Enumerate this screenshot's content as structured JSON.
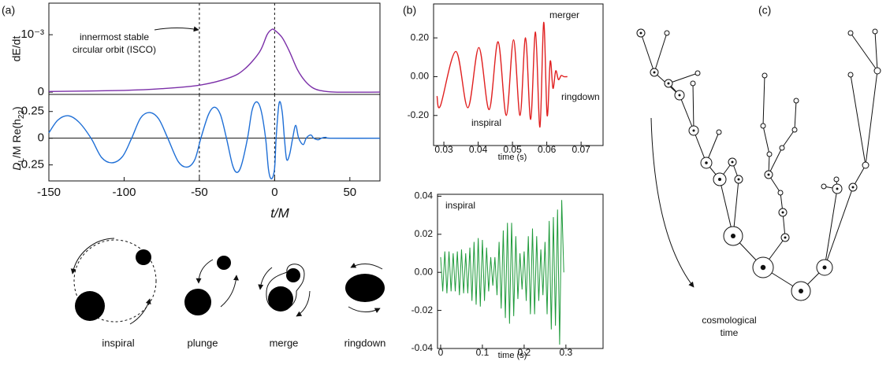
{
  "panel_labels": [
    "(a)",
    "(b)",
    "(c)"
  ],
  "stages": [
    "inspiral",
    "plunge",
    "merge",
    "ringdown"
  ],
  "tree_label": [
    "cosmological",
    "time"
  ],
  "chart_data": [
    {
      "type": "line",
      "ylabel": "dE/dt",
      "xlim": [
        -150,
        70
      ],
      "ylim": [
        -4e-05,
        0.00155
      ],
      "yticks": [
        0,
        {
          "value": 0.001,
          "label": "10⁻³"
        }
      ],
      "vlines": [
        -50,
        0
      ],
      "annotation": [
        "innermost stable",
        "circular orbit (ISCO)"
      ],
      "x": [
        -150,
        -100,
        -75,
        -50,
        -30,
        -20,
        -10,
        -5,
        -2,
        0,
        5,
        10,
        15,
        20,
        25,
        30,
        40,
        70
      ],
      "series": [
        {
          "color": "#7b2fa8",
          "values": [
            1e-05,
            3e-05,
            6e-05,
            0.00012,
            0.00025,
            0.0004,
            0.0007,
            0.001,
            0.00109,
            0.00108,
            0.00095,
            0.0007,
            0.0004,
            0.0002,
            8e-05,
            3e-05,
            0,
            0
          ]
        }
      ]
    },
    {
      "type": "line",
      "ylabel": [
        "D",
        "L",
        "/M Re(h",
        "22",
        ")"
      ],
      "xlabel": "t/M",
      "xlim": [
        -150,
        70
      ],
      "ylim": [
        -0.4,
        0.41
      ],
      "xticks": [
        -150,
        -100,
        -50,
        0,
        50
      ],
      "yticks": [
        -0.25,
        0,
        0.25
      ],
      "vlines": [
        -50,
        0
      ],
      "hlines": [
        0
      ],
      "x": [
        -150,
        -144,
        -137,
        -130,
        -122,
        -115,
        -108,
        -101,
        -95,
        -89,
        -83,
        -77,
        -71,
        -64,
        -58,
        -53,
        -49,
        -44,
        -40,
        -36,
        -32,
        -28,
        -25,
        -22,
        -18,
        -15,
        -12,
        -9,
        -6,
        -4,
        -2,
        0,
        1,
        3,
        5,
        6.5,
        8,
        10,
        12,
        14,
        16,
        19,
        21,
        24,
        26,
        29,
        31,
        34,
        38,
        70
      ],
      "series": [
        {
          "color": "#1f6fd6",
          "values": [
            0.05,
            0.17,
            0.21,
            0.15,
            0,
            -0.18,
            -0.23,
            -0.17,
            0,
            0.19,
            0.24,
            0.18,
            0,
            -0.22,
            -0.27,
            -0.2,
            0,
            0.22,
            0.29,
            0.22,
            0,
            -0.25,
            -0.32,
            -0.25,
            0,
            0.26,
            0.34,
            0.26,
            0,
            -0.3,
            -0.38,
            -0.28,
            0,
            0.33,
            0.25,
            0,
            -0.2,
            -0.15,
            0,
            0.12,
            0,
            -0.06,
            0,
            0.03,
            0,
            -0.015,
            0,
            0.008,
            0,
            0
          ]
        }
      ]
    },
    {
      "type": "line",
      "xlabel": "time (s)",
      "xlim": [
        0.027,
        0.0764
      ],
      "ylim": [
        -0.355,
        0.375
      ],
      "xticks": [
        0.03,
        0.04,
        0.05,
        0.06,
        0.07
      ],
      "yticks": [
        {
          "value": -0.2,
          "label": "-0.20"
        },
        {
          "value": 0,
          "label": "0.00"
        },
        {
          "value": 0.2,
          "label": "0.20"
        }
      ],
      "annotations": [
        "merger",
        "ringdown",
        "inspiral"
      ],
      "x": [
        0.028,
        0.029,
        0.0335,
        0.037,
        0.0402,
        0.0432,
        0.0458,
        0.0482,
        0.0503,
        0.0522,
        0.0538,
        0.0553,
        0.0567,
        0.058,
        0.0591,
        0.0601,
        0.061,
        0.0618,
        0.0626,
        0.0634,
        0.0642,
        0.065,
        0.066
      ],
      "series": [
        {
          "color": "#e02020",
          "values": [
            -0.1,
            -0.15,
            0.13,
            -0.16,
            0.15,
            -0.17,
            0.18,
            -0.2,
            0.19,
            -0.2,
            0.2,
            -0.22,
            0.23,
            -0.26,
            0.28,
            -0.2,
            0.08,
            -0.06,
            0.03,
            -0.015,
            0.006,
            0,
            0
          ]
        }
      ]
    },
    {
      "type": "line",
      "xlabel": "time (s)",
      "xlim": [
        -0.0075,
        0.389
      ],
      "ylim": [
        -0.04,
        0.041
      ],
      "xticks": [
        0,
        0.1,
        0.2,
        0.3
      ],
      "yticks": [
        {
          "value": -0.04,
          "label": "-0.04"
        },
        {
          "value": -0.02,
          "label": "-0.02"
        },
        {
          "value": 0,
          "label": "0.00"
        },
        {
          "value": 0.02,
          "label": "0.02"
        },
        {
          "value": 0.04,
          "label": "0.04"
        }
      ],
      "annotations": [
        "inspiral"
      ],
      "x": [
        0,
        0.005,
        0.01,
        0.015,
        0.02,
        0.025,
        0.03,
        0.035,
        0.04,
        0.045,
        0.05,
        0.055,
        0.06,
        0.065,
        0.07,
        0.075,
        0.08,
        0.085,
        0.09,
        0.095,
        0.1,
        0.105,
        0.11,
        0.115,
        0.12,
        0.125,
        0.13,
        0.135,
        0.14,
        0.145,
        0.15,
        0.155,
        0.16,
        0.165,
        0.17,
        0.175,
        0.18,
        0.185,
        0.19,
        0.195,
        0.2,
        0.205,
        0.21,
        0.215,
        0.22,
        0.225,
        0.23,
        0.235,
        0.24,
        0.245,
        0.25,
        0.255,
        0.26,
        0.265,
        0.27,
        0.275,
        0.28,
        0.285,
        0.29,
        0.295
      ],
      "series": [
        {
          "color": "#1e9a3a",
          "values": [
            0.008,
            -0.01,
            0.011,
            -0.011,
            0.011,
            -0.01,
            0.01,
            -0.01,
            0.011,
            -0.012,
            0.012,
            -0.011,
            0.01,
            -0.011,
            0.013,
            -0.015,
            0.016,
            -0.017,
            0.018,
            -0.018,
            0.017,
            -0.015,
            0.013,
            -0.01,
            0.008,
            -0.007,
            0.008,
            -0.012,
            0.016,
            -0.019,
            0.022,
            -0.024,
            0.026,
            -0.027,
            0.026,
            -0.023,
            0.019,
            -0.014,
            0.01,
            -0.009,
            0.011,
            -0.015,
            0.019,
            -0.022,
            0.023,
            -0.022,
            0.019,
            -0.015,
            0.012,
            -0.012,
            0.016,
            -0.022,
            0.027,
            -0.03,
            0.029,
            -0.028,
            0.033,
            -0.038,
            0.038,
            0
          ]
        }
      ]
    }
  ]
}
